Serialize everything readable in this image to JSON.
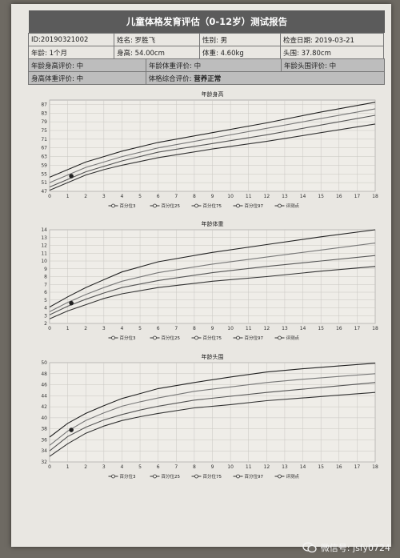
{
  "report": {
    "title": "儿童体格发育评估（0-12岁）测试报告",
    "id": "ID:20190321002",
    "name": "姓名: 罗胜飞",
    "gender": "性别: 男",
    "exam_date": "检查日期: 2019-03-21",
    "age": "年龄: 1个月",
    "height": "身高: 54.00cm",
    "weight": "体重: 4.60kg",
    "head": "头围: 37.80cm",
    "eval_age_height": "年龄身高评价: 中",
    "eval_age_weight": "年龄体重评价: 中",
    "eval_age_head": "年龄头围评价: 中",
    "eval_height_weight": "身高体重评价: 中",
    "eval_overall_label": "体格综合评价:",
    "eval_overall_value": "营养正常"
  },
  "watermark": {
    "text": "微信号: jsfy0724"
  },
  "chart_data": [
    {
      "type": "line",
      "title": "年龄身高",
      "x_ticks": [
        0,
        1,
        2,
        3,
        4,
        5,
        6,
        7,
        8,
        9,
        10,
        11,
        12,
        13,
        14,
        15,
        16,
        17,
        18
      ],
      "y_ticks": [
        47,
        51,
        55,
        59,
        63,
        67,
        71,
        75,
        79,
        83,
        87
      ],
      "xlim": [
        0,
        18
      ],
      "ylim": [
        47,
        89
      ],
      "grid": true,
      "legend": [
        "百分位3",
        "百分位25",
        "百分位75",
        "百分位97",
        "评测点"
      ],
      "series": [
        {
          "name": "百分位3",
          "x": [
            0,
            1,
            2,
            3,
            4,
            6,
            9,
            12,
            15,
            18
          ],
          "y": [
            47.5,
            51,
            54.5,
            57,
            59,
            62.5,
            66.5,
            70,
            74,
            78
          ]
        },
        {
          "name": "百分位25",
          "x": [
            0,
            1,
            2,
            3,
            4,
            6,
            9,
            12,
            15,
            18
          ],
          "y": [
            49,
            52.5,
            56,
            58.5,
            61,
            65,
            69,
            73,
            77.5,
            82
          ]
        },
        {
          "name": "百分位75",
          "x": [
            0,
            1,
            2,
            3,
            4,
            6,
            9,
            12,
            15,
            18
          ],
          "y": [
            51,
            54.5,
            58,
            60.5,
            63,
            67,
            71.5,
            76,
            80.5,
            85
          ]
        },
        {
          "name": "百分位97",
          "x": [
            0,
            1,
            2,
            3,
            4,
            6,
            9,
            12,
            15,
            18
          ],
          "y": [
            53.5,
            57,
            60.5,
            63,
            65.5,
            69.5,
            74,
            78.5,
            83.5,
            88
          ]
        }
      ],
      "point": {
        "name": "评测点",
        "x": 1.2,
        "y": 54
      }
    },
    {
      "type": "line",
      "title": "年龄体重",
      "x_ticks": [
        0,
        1,
        2,
        3,
        4,
        5,
        6,
        7,
        8,
        9,
        10,
        11,
        12,
        13,
        14,
        15,
        16,
        17,
        18
      ],
      "y_ticks": [
        2,
        3,
        4,
        5,
        6,
        7,
        8,
        9,
        10,
        11,
        12,
        13,
        14
      ],
      "xlim": [
        0,
        18
      ],
      "ylim": [
        2,
        14
      ],
      "grid": true,
      "legend": [
        "百分位3",
        "百分位25",
        "百分位75",
        "百分位97",
        "评测点"
      ],
      "series": [
        {
          "name": "百分位3",
          "x": [
            0,
            1,
            2,
            3,
            4,
            6,
            9,
            12,
            15,
            18
          ],
          "y": [
            2.6,
            3.6,
            4.4,
            5.2,
            5.8,
            6.6,
            7.4,
            8,
            8.7,
            9.3
          ]
        },
        {
          "name": "百分位25",
          "x": [
            0,
            1,
            2,
            3,
            4,
            6,
            9,
            12,
            15,
            18
          ],
          "y": [
            3.1,
            4.2,
            5.1,
            5.9,
            6.6,
            7.5,
            8.5,
            9.3,
            10,
            10.7
          ]
        },
        {
          "name": "百分位75",
          "x": [
            0,
            1,
            2,
            3,
            4,
            6,
            9,
            12,
            15,
            18
          ],
          "y": [
            3.5,
            4.7,
            5.7,
            6.6,
            7.4,
            8.5,
            9.6,
            10.5,
            11.4,
            12.3
          ]
        },
        {
          "name": "百分位97",
          "x": [
            0,
            1,
            2,
            3,
            4,
            6,
            9,
            12,
            15,
            18
          ],
          "y": [
            4.1,
            5.4,
            6.6,
            7.6,
            8.6,
            9.9,
            11.1,
            12.1,
            13.1,
            14
          ]
        }
      ],
      "point": {
        "name": "评测点",
        "x": 1.2,
        "y": 4.6
      }
    },
    {
      "type": "line",
      "title": "年龄头围",
      "x_ticks": [
        0,
        1,
        2,
        3,
        4,
        5,
        6,
        7,
        8,
        9,
        10,
        11,
        12,
        13,
        14,
        15,
        16,
        17,
        18
      ],
      "y_ticks": [
        32,
        34,
        36,
        38,
        40,
        42,
        44,
        46,
        48,
        50
      ],
      "xlim": [
        0,
        18
      ],
      "ylim": [
        32,
        50
      ],
      "grid": true,
      "legend": [
        "百分位3",
        "百分位25",
        "百分位75",
        "百分位97",
        "评测点"
      ],
      "series": [
        {
          "name": "百分位3",
          "x": [
            0,
            1,
            2,
            3,
            4,
            5,
            6,
            8,
            10,
            12,
            14,
            16,
            18
          ],
          "y": [
            33,
            35.3,
            37.2,
            38.5,
            39.5,
            40.2,
            40.8,
            41.8,
            42.4,
            43.1,
            43.6,
            44.1,
            44.6
          ]
        },
        {
          "name": "百分位25",
          "x": [
            0,
            1,
            2,
            3,
            4,
            5,
            6,
            8,
            10,
            12,
            14,
            16,
            18
          ],
          "y": [
            34,
            36.6,
            38.3,
            39.6,
            40.6,
            41.4,
            42.1,
            43.2,
            43.9,
            44.6,
            45.2,
            45.8,
            46.4
          ]
        },
        {
          "name": "百分位75",
          "x": [
            0,
            1,
            2,
            3,
            4,
            5,
            6,
            8,
            10,
            12,
            14,
            16,
            18
          ],
          "y": [
            35,
            37.6,
            39.5,
            40.9,
            42.1,
            42.9,
            43.6,
            44.8,
            45.6,
            46.4,
            47,
            47.5,
            48
          ]
        },
        {
          "name": "百分位97",
          "x": [
            0,
            1,
            2,
            3,
            4,
            5,
            6,
            8,
            10,
            12,
            14,
            16,
            18
          ],
          "y": [
            36.5,
            39,
            40.8,
            42.2,
            43.5,
            44.4,
            45.3,
            46.4,
            47.4,
            48.3,
            48.9,
            49.4,
            49.9
          ]
        }
      ],
      "point": {
        "name": "评测点",
        "x": 1.2,
        "y": 37.8
      }
    }
  ]
}
